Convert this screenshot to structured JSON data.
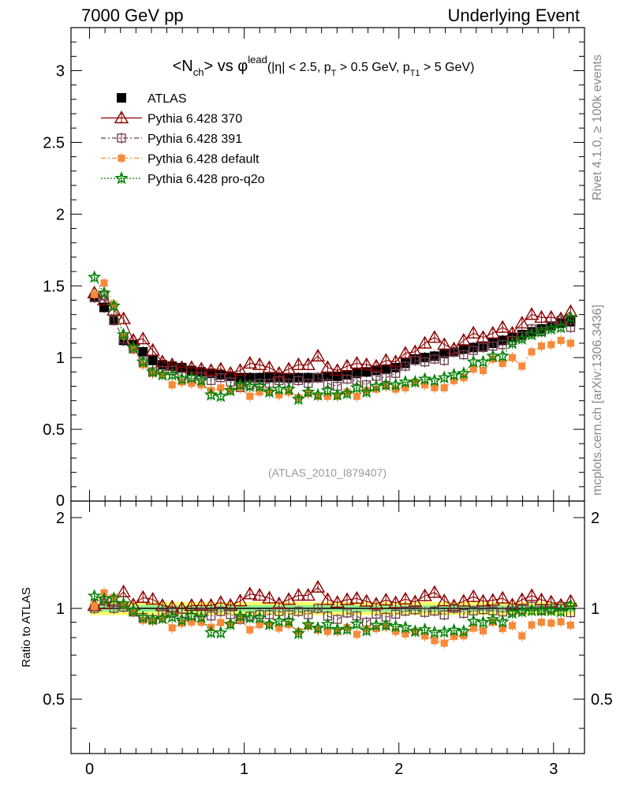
{
  "header": {
    "left": "7000 GeV pp",
    "right": "Underlying Event"
  },
  "side_labels": {
    "rivet": "Rivet 4.1.0, ≥ 100k events",
    "mcplots": "mcplots.cern.ch [arXiv:1306.3436]"
  },
  "chart_data": [
    {
      "type": "scatter",
      "panel": "main",
      "title": "<N_ch> vs φ^lead (|η| < 2.5, p_T > 0.5 GeV, p_T1 > 5 GeV)",
      "title_parts": {
        "n": "<N",
        "ch": "ch",
        "vs": "> vs φ",
        "lead": "lead",
        "cuts_a": "(|η| < 2.5, p",
        "t": "T",
        "cuts_b": " > 0.5 GeV, p",
        "t1": "T1",
        "cuts_c": " > 5 GeV)"
      },
      "watermark": "(ATLAS_2010_I879407)",
      "xlim": [
        -0.12,
        3.2
      ],
      "ylim": [
        0,
        3.3
      ],
      "xticks": [
        "0",
        "1",
        "2",
        "3"
      ],
      "yticks": [
        "0.5",
        "1",
        "1.5",
        "2",
        "2.5",
        "3"
      ],
      "y0_label": "0",
      "x": [
        0.0314,
        0.0942,
        0.1571,
        0.2199,
        0.2827,
        0.3456,
        0.4084,
        0.4712,
        0.5341,
        0.5969,
        0.6597,
        0.7226,
        0.7854,
        0.8482,
        0.9111,
        0.9739,
        1.0367,
        1.0996,
        1.1624,
        1.2252,
        1.2881,
        1.3509,
        1.4137,
        1.4765,
        1.5394,
        1.6022,
        1.665,
        1.7279,
        1.7907,
        1.8535,
        1.9164,
        1.9792,
        2.042,
        2.1049,
        2.1677,
        2.2305,
        2.2934,
        2.3562,
        2.419,
        2.4819,
        2.5447,
        2.6075,
        2.6704,
        2.7332,
        2.796,
        2.8588,
        2.9217,
        2.9845,
        3.0473,
        3.1102
      ],
      "series": [
        {
          "name": "ATLAS",
          "color": "#000000",
          "marker": "square-filled",
          "values": [
            1.42,
            1.35,
            1.26,
            1.12,
            1.09,
            1.04,
            0.98,
            0.95,
            0.94,
            0.93,
            0.91,
            0.9,
            0.89,
            0.88,
            0.87,
            0.86,
            0.86,
            0.86,
            0.86,
            0.86,
            0.86,
            0.86,
            0.86,
            0.86,
            0.87,
            0.87,
            0.88,
            0.89,
            0.9,
            0.91,
            0.92,
            0.93,
            0.96,
            0.99,
            1.0,
            1.01,
            1.03,
            1.04,
            1.06,
            1.07,
            1.08,
            1.1,
            1.12,
            1.14,
            1.16,
            1.18,
            1.2,
            1.22,
            1.24,
            1.25
          ]
        },
        {
          "name": "Pythia 6.428 370",
          "color": "#8b0000",
          "marker": "triangle-open",
          "values": [
            1.45,
            1.4,
            1.33,
            1.27,
            1.12,
            1.13,
            1.05,
            0.97,
            0.95,
            0.93,
            0.93,
            0.92,
            0.91,
            0.92,
            0.89,
            0.91,
            0.96,
            0.95,
            0.93,
            0.89,
            0.92,
            0.95,
            0.95,
            1.01,
            0.93,
            0.91,
            0.94,
            0.96,
            0.95,
            0.94,
            0.98,
            0.97,
            1.03,
            1.04,
            1.1,
            1.14,
            1.09,
            1.06,
            1.12,
            1.17,
            1.14,
            1.17,
            1.21,
            1.17,
            1.24,
            1.3,
            1.28,
            1.28,
            1.27,
            1.32
          ]
        },
        {
          "name": "Pythia 6.428 391",
          "color": "#6b3a4a",
          "marker": "square-open",
          "values": [
            1.42,
            1.43,
            1.26,
            1.13,
            1.06,
            0.97,
            0.9,
            0.91,
            0.91,
            0.87,
            0.85,
            0.87,
            0.84,
            0.86,
            0.83,
            0.79,
            0.81,
            0.82,
            0.82,
            0.84,
            0.82,
            0.84,
            0.82,
            0.86,
            0.82,
            0.8,
            0.85,
            0.84,
            0.81,
            0.87,
            0.86,
            0.89,
            0.94,
            0.98,
            0.97,
            0.99,
            0.98,
            1.04,
            1.02,
            1.05,
            1.07,
            1.08,
            1.09,
            1.12,
            1.15,
            1.2,
            1.18,
            1.22,
            1.26,
            1.21
          ]
        },
        {
          "name": "Pythia 6.428 default",
          "color": "#f78a3a",
          "marker": "square-filled-small",
          "values": [
            1.44,
            1.52,
            1.37,
            1.15,
            1.06,
            0.95,
            0.89,
            0.88,
            0.81,
            0.83,
            0.82,
            0.81,
            0.77,
            0.79,
            0.77,
            0.79,
            0.73,
            0.76,
            0.76,
            0.74,
            0.76,
            0.72,
            0.75,
            0.73,
            0.73,
            0.73,
            0.76,
            0.73,
            0.77,
            0.78,
            0.8,
            0.78,
            0.79,
            0.83,
            0.81,
            0.79,
            0.79,
            0.84,
            0.86,
            0.92,
            0.91,
            0.99,
            0.96,
            1.0,
            0.94,
            1.04,
            1.08,
            1.09,
            1.12,
            1.1
          ]
        },
        {
          "name": "Pythia 6.428 pro-q2o",
          "color": "#008000",
          "marker": "star-open",
          "values": [
            1.56,
            1.45,
            1.36,
            1.16,
            1.07,
            0.97,
            0.9,
            0.88,
            0.88,
            0.85,
            0.86,
            0.84,
            0.74,
            0.73,
            0.77,
            0.81,
            0.8,
            0.8,
            0.76,
            0.78,
            0.78,
            0.71,
            0.76,
            0.74,
            0.77,
            0.74,
            0.75,
            0.79,
            0.76,
            0.8,
            0.81,
            0.81,
            0.83,
            0.83,
            0.85,
            0.84,
            0.86,
            0.88,
            0.89,
            0.97,
            0.97,
            1.01,
            1.01,
            1.1,
            1.13,
            1.16,
            1.18,
            1.2,
            1.21,
            1.28
          ]
        }
      ]
    },
    {
      "type": "scatter",
      "panel": "ratio",
      "ylabel": "Ratio to ATLAS",
      "xlim": [
        -0.12,
        3.2
      ],
      "ylim": [
        0.33,
        2.27
      ],
      "xticks": [
        "0",
        "1",
        "2",
        "3"
      ],
      "yticks": [
        "0.5",
        "1",
        "2"
      ],
      "band_color_inner": "#90ee90",
      "band_color_outer": "#ffff66"
    }
  ]
}
